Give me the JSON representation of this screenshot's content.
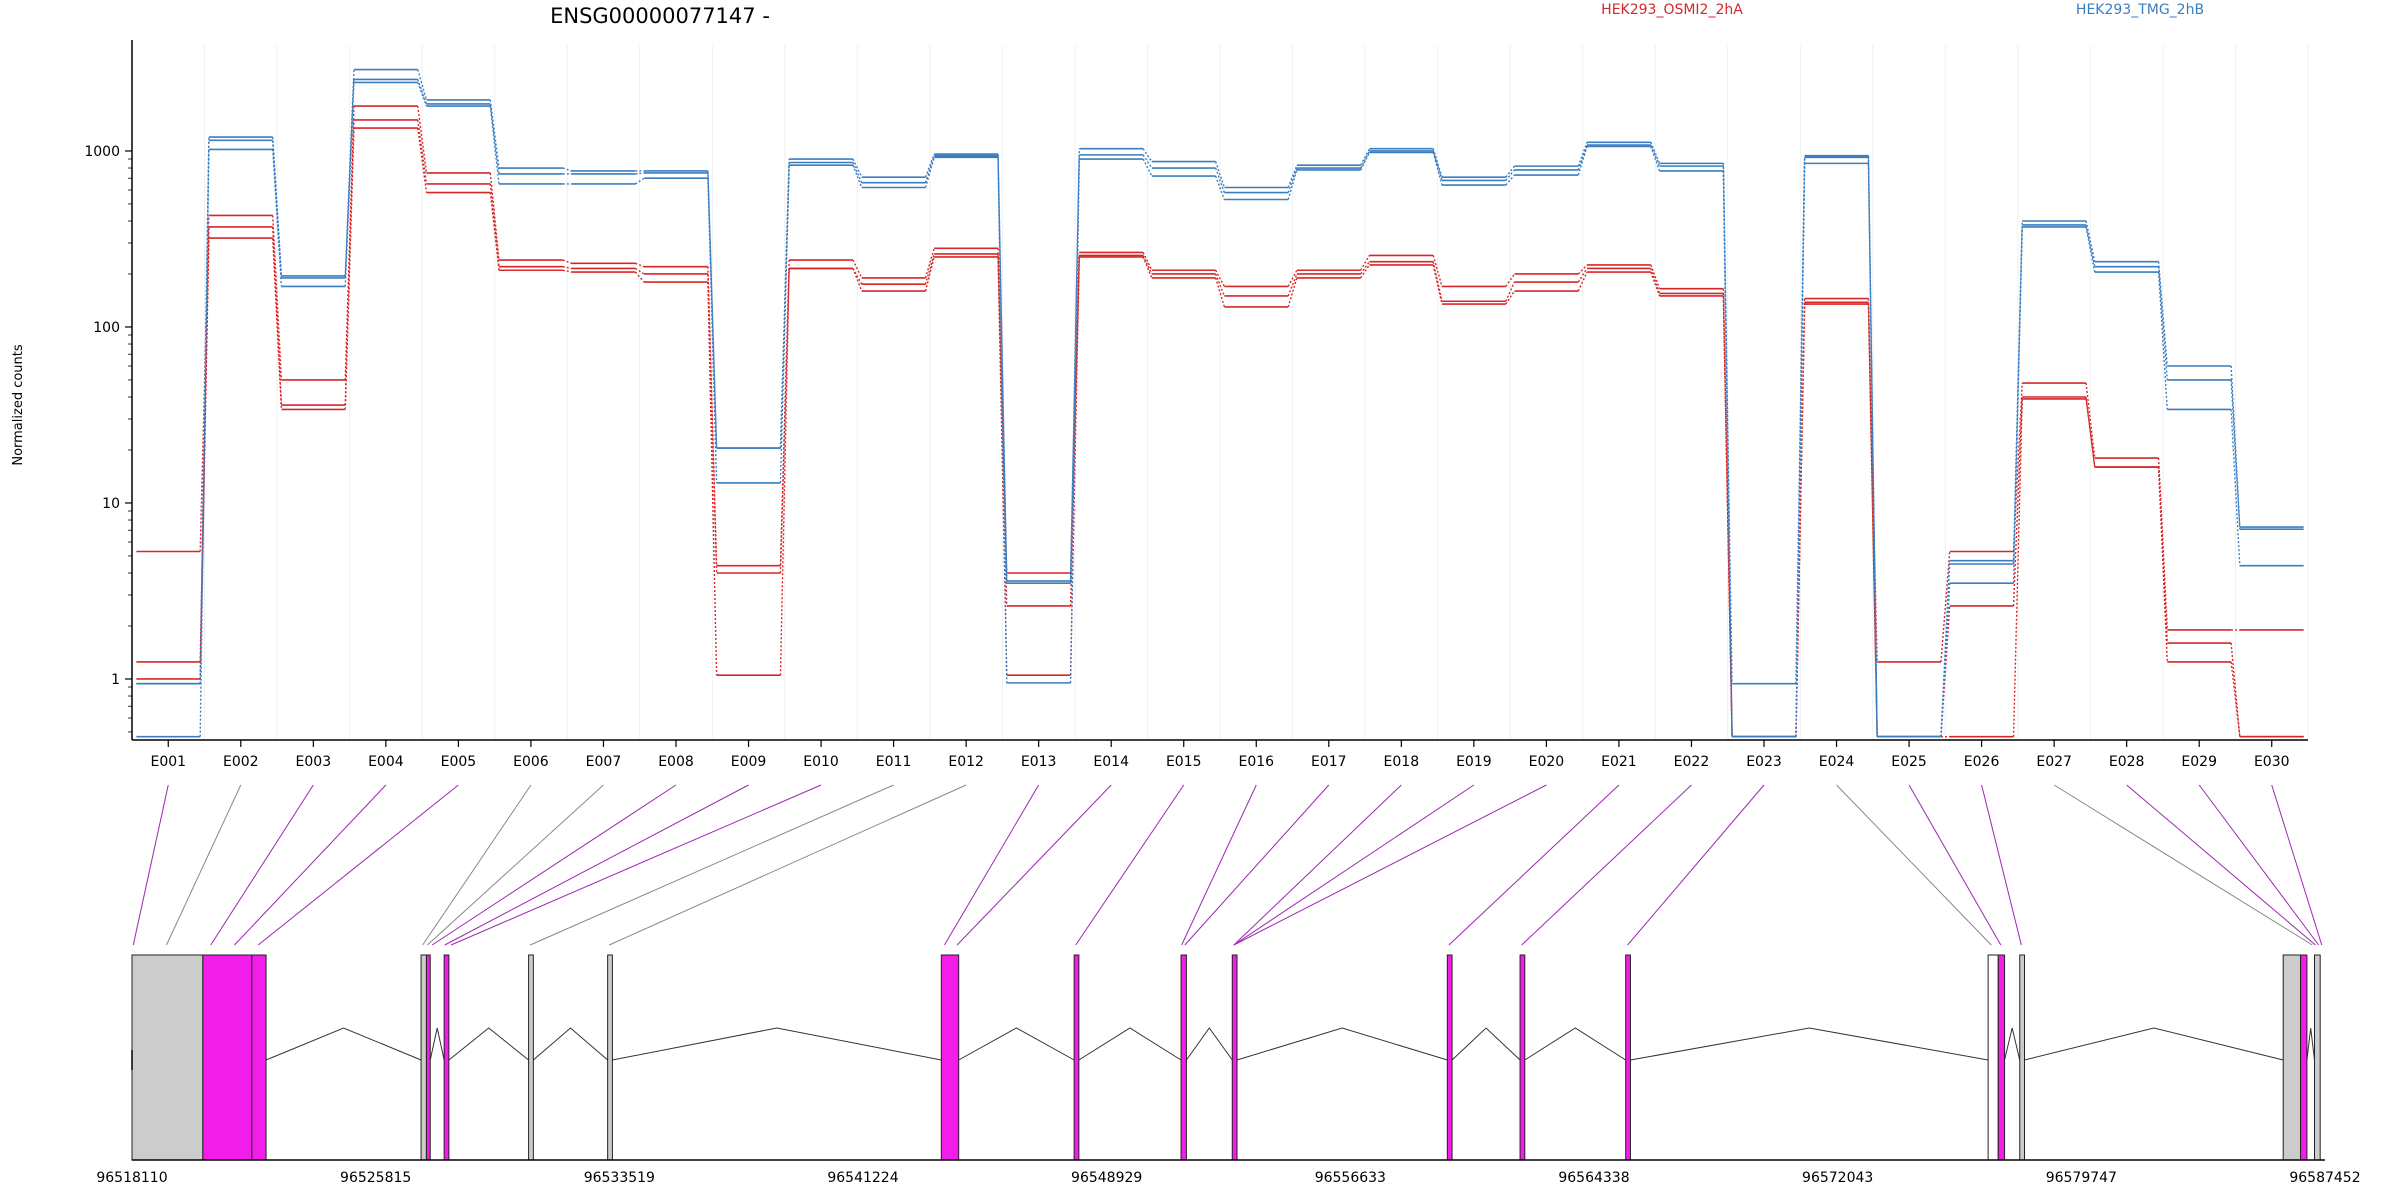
{
  "chart_data": {
    "type": "line",
    "title": "ENSG00000077147 -",
    "ylabel": "Normalized counts",
    "xlabel": "",
    "yscale": "log",
    "ylim": [
      0.45,
      4000
    ],
    "yticks": [
      1,
      10,
      100,
      1000
    ],
    "ytick_labels": [
      "1",
      "10",
      "100",
      "1000"
    ],
    "grid": "vertical lines at exon boundaries",
    "legend_placement": "top",
    "categories": [
      "E001",
      "E002",
      "E003",
      "E004",
      "E005",
      "E006",
      "E007",
      "E008",
      "E009",
      "E010",
      "E011",
      "E012",
      "E013",
      "E014",
      "E015",
      "E016",
      "E017",
      "E018",
      "E019",
      "E020",
      "E021",
      "E022",
      "E023",
      "E024",
      "E025",
      "E026",
      "E027",
      "E028",
      "E029",
      "E030"
    ],
    "series": [
      {
        "name": "HEK293_OSMI2_2hA",
        "color": "#d62728",
        "values": [
          5.3,
          430,
          50,
          1800,
          750,
          240,
          230,
          220,
          4.4,
          240,
          190,
          280,
          4.0,
          265,
          210,
          170,
          210,
          255,
          170,
          200,
          225,
          165,
          0.47,
          145,
          1.25,
          5.3,
          48,
          18,
          1.9,
          1.9
        ]
      },
      {
        "name": "",
        "color": "#d62728",
        "values": [
          1.25,
          370,
          36,
          1500,
          650,
          220,
          215,
          200,
          4.0,
          215,
          175,
          260,
          2.6,
          255,
          200,
          150,
          200,
          235,
          140,
          180,
          215,
          155,
          0.47,
          138,
          0.47,
          2.6,
          40,
          16,
          1.6,
          0.47
        ]
      },
      {
        "name": "",
        "color": "#d62728",
        "values": [
          1.0,
          320,
          34,
          1350,
          580,
          210,
          205,
          180,
          1.05,
          215,
          160,
          250,
          1.05,
          250,
          190,
          130,
          190,
          225,
          135,
          160,
          205,
          150,
          0.47,
          135,
          0.47,
          0.47,
          39,
          16,
          1.25,
          0.47
        ]
      },
      {
        "name": "HEK293_TMG_2hB",
        "color": "#3a7ebf",
        "values": [
          0.94,
          1200,
          195,
          2900,
          1950,
          800,
          770,
          770,
          20.5,
          900,
          710,
          960,
          3.6,
          1030,
          870,
          620,
          830,
          1030,
          710,
          820,
          1120,
          850,
          0.94,
          940,
          0.47,
          4.7,
          400,
          235,
          60,
          7.3
        ]
      },
      {
        "name": "",
        "color": "#3a7ebf",
        "values": [
          0.94,
          1150,
          190,
          2550,
          1850,
          740,
          740,
          750,
          20.5,
          860,
          660,
          940,
          3.5,
          950,
          800,
          580,
          800,
          1000,
          680,
          780,
          1080,
          820,
          0.47,
          920,
          0.47,
          4.5,
          380,
          220,
          50,
          7.1
        ]
      },
      {
        "name": "",
        "color": "#3a7ebf",
        "values": [
          0.47,
          1020,
          170,
          2450,
          1800,
          650,
          650,
          700,
          13,
          830,
          620,
          920,
          0.95,
          900,
          720,
          530,
          780,
          980,
          640,
          730,
          1060,
          770,
          0.47,
          850,
          0.47,
          3.5,
          370,
          205,
          34,
          4.4
        ]
      }
    ],
    "gene_model": {
      "x_tick_labels": [
        "96518110",
        "96525815",
        "96533519",
        "96541224",
        "96548929",
        "96556633",
        "96564338",
        "96572043",
        "96579747",
        "96587452"
      ],
      "xlim": [
        96518110,
        96587452
      ],
      "exon_blocks": [
        {
          "start": 96518110,
          "end": 96520350,
          "fill": "#cccccc"
        },
        {
          "start": 96520350,
          "end": 96521900,
          "fill": "#f21de8"
        },
        {
          "start": 96521900,
          "end": 96522350,
          "fill": "#f21de8"
        },
        {
          "start": 96527250,
          "end": 96527420,
          "fill": "#cccccc"
        },
        {
          "start": 96527420,
          "end": 96527540,
          "fill": "#f21de8"
        },
        {
          "start": 96527980,
          "end": 96528130,
          "fill": "#f21de8"
        },
        {
          "start": 96530650,
          "end": 96530800,
          "fill": "#cccccc"
        },
        {
          "start": 96533150,
          "end": 96533300,
          "fill": "#cccccc"
        },
        {
          "start": 96543700,
          "end": 96544250,
          "fill": "#f21de8"
        },
        {
          "start": 96547900,
          "end": 96548050,
          "fill": "#f21de8"
        },
        {
          "start": 96551280,
          "end": 96551450,
          "fill": "#f21de8"
        },
        {
          "start": 96552900,
          "end": 96553050,
          "fill": "#f21de8"
        },
        {
          "start": 96559700,
          "end": 96559850,
          "fill": "#f21de8"
        },
        {
          "start": 96562000,
          "end": 96562150,
          "fill": "#f21de8"
        },
        {
          "start": 96565340,
          "end": 96565490,
          "fill": "#f21de8"
        },
        {
          "start": 96576800,
          "end": 96577120,
          "fill": "#ffffff"
        },
        {
          "start": 96577120,
          "end": 96577320,
          "fill": "#f21de8"
        },
        {
          "start": 96577800,
          "end": 96577950,
          "fill": "#cccccc"
        },
        {
          "start": 96586130,
          "end": 96586680,
          "fill": "#cccccc"
        },
        {
          "start": 96586680,
          "end": 96586880,
          "fill": "#f21de8"
        },
        {
          "start": 96587120,
          "end": 96587300,
          "fill": "#cccccc"
        }
      ],
      "exon_anchors": [
        96518150,
        96519200,
        96520600,
        96521350,
        96522100,
        96527300,
        96527450,
        96527600,
        96528000,
        96528200,
        96530700,
        96533200,
        96543800,
        96544200,
        96547950,
        96551300,
        96551400,
        96552950,
        96552950,
        96552950,
        96559750,
        96562050,
        96565400,
        96576900,
        96577200,
        96577850,
        96587050,
        96587150,
        96587250,
        96587350
      ],
      "anchor_colors": [
        "#9c27b0",
        "#888888",
        "#9c27b0",
        "#9c27b0",
        "#9c27b0",
        "#888888",
        "#888888",
        "#9c27b0",
        "#9c27b0",
        "#9c27b0",
        "#888888",
        "#888888",
        "#9c27b0",
        "#9c27b0",
        "#9c27b0",
        "#9c27b0",
        "#9c27b0",
        "#9c27b0",
        "#9c27b0",
        "#9c27b0",
        "#9c27b0",
        "#9c27b0",
        "#9c27b0",
        "#888888",
        "#9c27b0",
        "#9c27b0",
        "#888888",
        "#9c27b0",
        "#9c27b0",
        "#9c27b0"
      ]
    }
  }
}
